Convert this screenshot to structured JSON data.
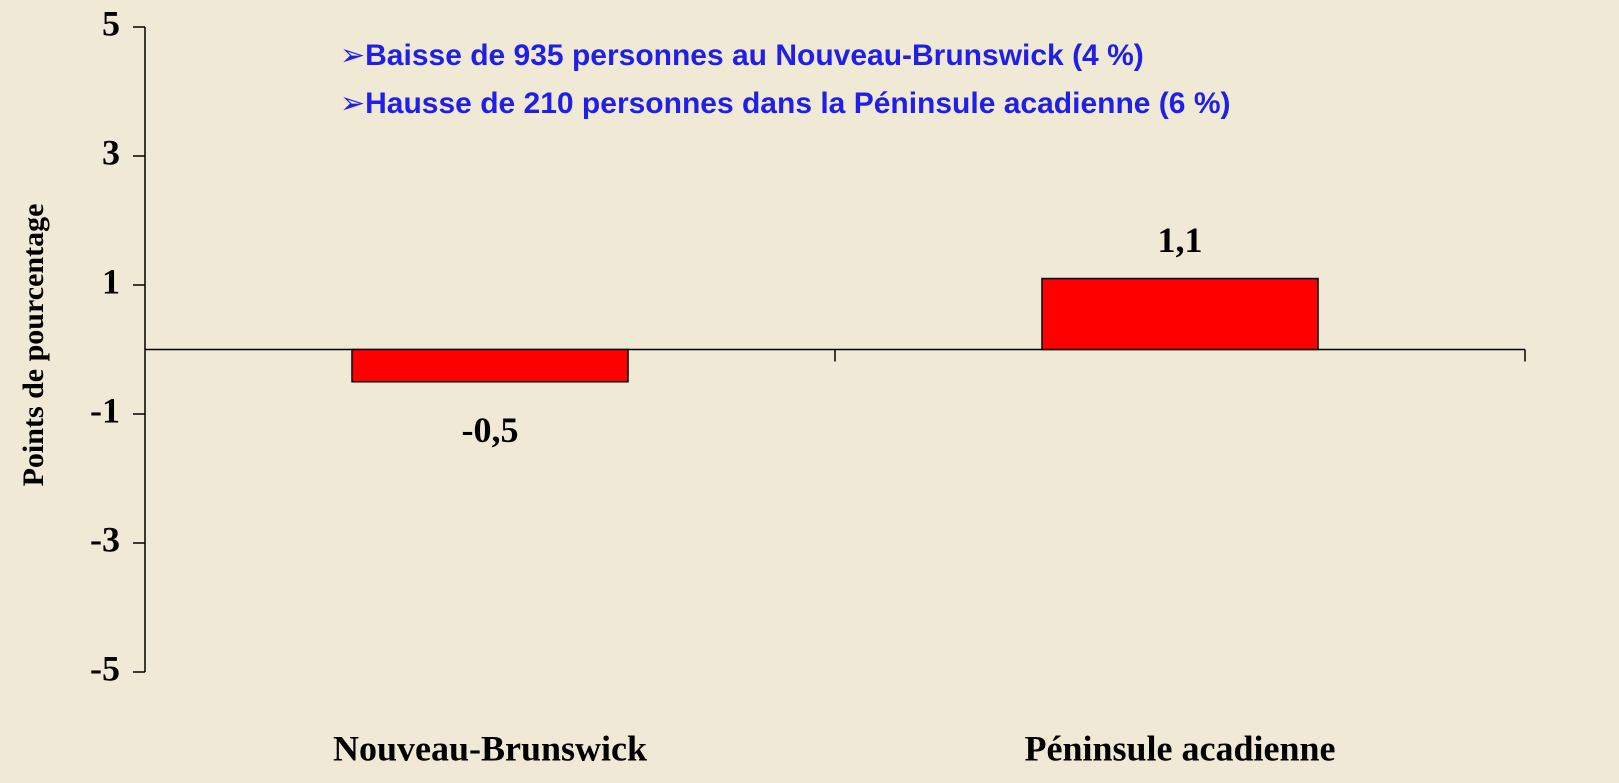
{
  "chart_data": {
    "type": "bar",
    "y_axis_label": "Points de pourcentage",
    "annotations": [
      "➢Baisse de 935 personnes au Nouveau-Brunswick (4 %)",
      "➢Hausse de 210 personnes dans la Péninsule acadienne (6 %)"
    ],
    "categories": [
      "Nouveau-Brunswick",
      "Péninsule acadienne"
    ],
    "values": [
      -0.5,
      1.1
    ],
    "value_labels": [
      "-0,5",
      "1,1"
    ],
    "color": "#ff0000",
    "ylim": [
      -5,
      5
    ],
    "yticks": [
      5,
      3,
      1,
      -1,
      -3,
      -5
    ],
    "grid": false
  }
}
